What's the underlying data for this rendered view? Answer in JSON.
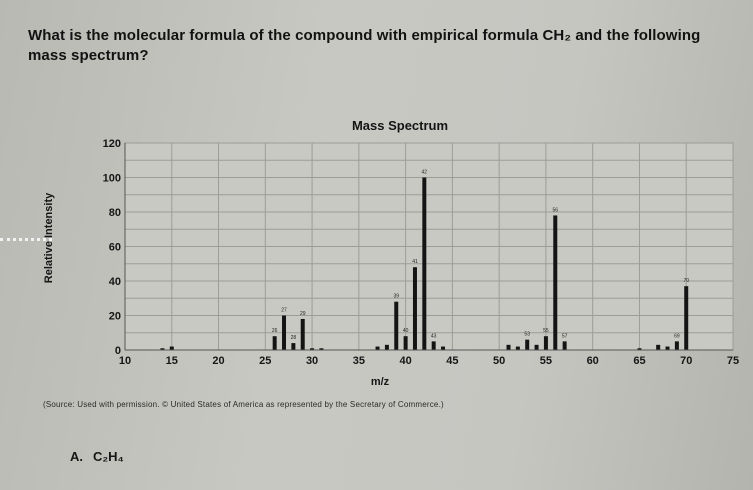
{
  "question": {
    "text": "What is the molecular formula of the compound with empirical formula CH₂ and the following mass spectrum?"
  },
  "chart_data": {
    "type": "bar",
    "title": "Mass Spectrum",
    "xlabel": "m/z",
    "ylabel": "Relative Intensity",
    "xlim": [
      10,
      75
    ],
    "ylim": [
      0,
      120
    ],
    "x_ticks": [
      "10",
      "15",
      "20",
      "25",
      "30",
      "35",
      "40",
      "45",
      "50",
      "55",
      "60",
      "65",
      "70",
      "75"
    ],
    "y_ticks": [
      "0",
      "20",
      "40",
      "60",
      "80",
      "100",
      "120"
    ],
    "grid": true,
    "peaks": [
      {
        "x": 14,
        "y": 1
      },
      {
        "x": 15,
        "y": 2
      },
      {
        "x": 26,
        "y": 8
      },
      {
        "x": 27,
        "y": 20
      },
      {
        "x": 28,
        "y": 4
      },
      {
        "x": 29,
        "y": 18
      },
      {
        "x": 30,
        "y": 1
      },
      {
        "x": 31,
        "y": 1
      },
      {
        "x": 37,
        "y": 2
      },
      {
        "x": 38,
        "y": 3
      },
      {
        "x": 39,
        "y": 28
      },
      {
        "x": 40,
        "y": 8
      },
      {
        "x": 41,
        "y": 48
      },
      {
        "x": 42,
        "y": 100
      },
      {
        "x": 43,
        "y": 5
      },
      {
        "x": 44,
        "y": 2
      },
      {
        "x": 51,
        "y": 3
      },
      {
        "x": 52,
        "y": 2
      },
      {
        "x": 53,
        "y": 6
      },
      {
        "x": 54,
        "y": 3
      },
      {
        "x": 55,
        "y": 8
      },
      {
        "x": 56,
        "y": 78
      },
      {
        "x": 57,
        "y": 5
      },
      {
        "x": 65,
        "y": 1
      },
      {
        "x": 67,
        "y": 3
      },
      {
        "x": 68,
        "y": 2
      },
      {
        "x": 69,
        "y": 5
      },
      {
        "x": 70,
        "y": 37
      }
    ]
  },
  "source_note": "(Source: Used with permission. © United States of America as represented by the Secretary of Commerce.)",
  "answer": {
    "letter": "A.",
    "formula": "C₂H₄"
  }
}
